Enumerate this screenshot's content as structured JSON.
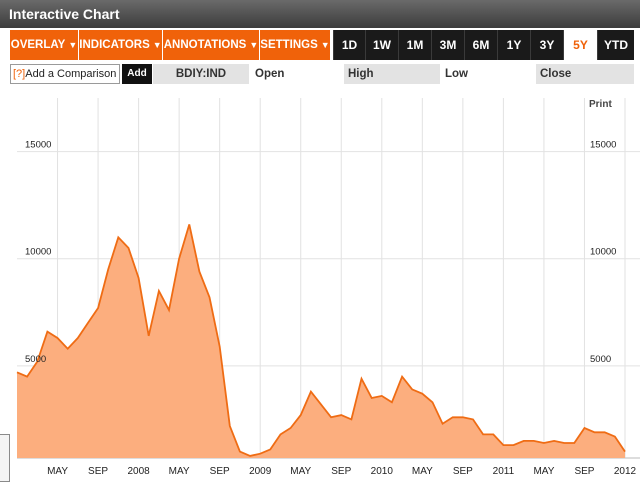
{
  "window": {
    "title": "Interactive Chart"
  },
  "toolbar": {
    "menus": [
      {
        "label": "OVERLAY"
      },
      {
        "label": "INDICATORS"
      },
      {
        "label": "ANNOTATIONS"
      },
      {
        "label": "SETTINGS"
      }
    ],
    "caret": "▼",
    "ranges": [
      "1D",
      "1W",
      "1M",
      "3M",
      "6M",
      "1Y",
      "3Y",
      "5Y",
      "YTD"
    ],
    "active_range": "5Y"
  },
  "compare": {
    "help": "[?]",
    "label": "Add a Comparison",
    "add_label": "Add",
    "symbol": "BDIY:IND",
    "fields": {
      "open": "Open",
      "high": "High",
      "low": "Low",
      "close": "Close"
    }
  },
  "print_label": "Print",
  "colors": {
    "accent": "#f0620a",
    "fill": "#fcae7e",
    "line": "#ef6c14"
  },
  "chart_data": {
    "type": "area",
    "title": "",
    "xlabel": "",
    "ylabel": "",
    "x_tick_labels": [
      "MAY",
      "SEP",
      "2008",
      "MAY",
      "SEP",
      "2009",
      "MAY",
      "SEP",
      "2010",
      "MAY",
      "SEP",
      "2011",
      "MAY",
      "SEP",
      "2012"
    ],
    "y_ticks": [
      5000,
      10000,
      15000
    ],
    "y_tick_labels": [
      "5000",
      "10000",
      "15000"
    ],
    "ylim": [
      700,
      17500
    ],
    "x_range": [
      "2007-01",
      "2012-01"
    ],
    "grid": true,
    "series": [
      {
        "name": "",
        "x": [
          "2007-01",
          "2007-02",
          "2007-03",
          "2007-04",
          "2007-05",
          "2007-06",
          "2007-07",
          "2007-08",
          "2007-09",
          "2007-10",
          "2007-11",
          "2007-12",
          "2008-01",
          "2008-02",
          "2008-03",
          "2008-04",
          "2008-05",
          "2008-06",
          "2008-07",
          "2008-08",
          "2008-09",
          "2008-10",
          "2008-11",
          "2008-12",
          "2009-01",
          "2009-02",
          "2009-03",
          "2009-04",
          "2009-05",
          "2009-06",
          "2009-07",
          "2009-08",
          "2009-09",
          "2009-10",
          "2009-11",
          "2009-12",
          "2010-01",
          "2010-02",
          "2010-03",
          "2010-04",
          "2010-05",
          "2010-06",
          "2010-07",
          "2010-08",
          "2010-09",
          "2010-10",
          "2010-11",
          "2010-12",
          "2011-01",
          "2011-02",
          "2011-03",
          "2011-04",
          "2011-05",
          "2011-06",
          "2011-07",
          "2011-08",
          "2011-09",
          "2011-10",
          "2011-11",
          "2011-12",
          "2012-01"
        ],
        "values": [
          4700,
          4500,
          5200,
          6600,
          6300,
          5800,
          6300,
          7000,
          7700,
          9500,
          11000,
          10500,
          9100,
          6400,
          8500,
          7600,
          10000,
          11600,
          9400,
          8200,
          5900,
          2200,
          1000,
          800,
          900,
          1100,
          1800,
          2100,
          2700,
          3800,
          3200,
          2600,
          2700,
          2500,
          4400,
          3500,
          3600,
          3300,
          4500,
          3900,
          3700,
          3300,
          2300,
          2600,
          2600,
          2500,
          1800,
          1800,
          1300,
          1300,
          1500,
          1500,
          1400,
          1500,
          1400,
          1400,
          2100,
          1900,
          1900,
          1700,
          1000
        ]
      }
    ]
  }
}
